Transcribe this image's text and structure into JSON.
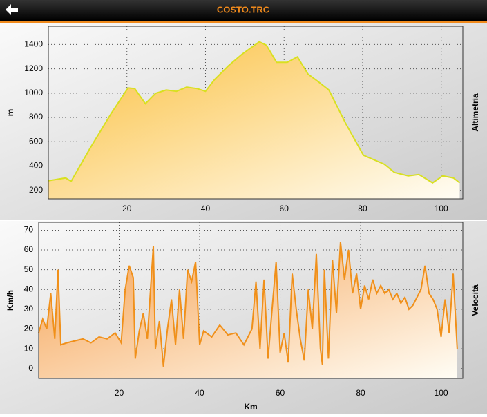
{
  "header": {
    "title": "COSTO.TRC"
  },
  "chart_data": [
    {
      "type": "area",
      "title": "Altimetria",
      "y_label": "m",
      "x": [
        0,
        4.4,
        5.8,
        10.6,
        15.9,
        20.3,
        22,
        24.7,
        27.3,
        30,
        32.6,
        35.2,
        37.9,
        40,
        42.3,
        45.8,
        49.3,
        53.7,
        55.5,
        58.1,
        60.8,
        63.4,
        66.1,
        68.7,
        71.4,
        75.8,
        80.2,
        85.5,
        88.1,
        91.6,
        94.3,
        97.8,
        100.4,
        103.1,
        104.7
      ],
      "values": [
        279,
        302,
        274,
        545,
        828,
        1043,
        1037,
        913,
        998,
        1026,
        1015,
        1049,
        1037,
        1015,
        1111,
        1224,
        1320,
        1422,
        1394,
        1253,
        1253,
        1298,
        1156,
        1094,
        1026,
        743,
        489,
        415,
        347,
        319,
        330,
        262,
        319,
        302,
        262
      ],
      "color": "#d8e020",
      "fill": "#fbbf3c",
      "xlim": [
        0,
        105.5
      ],
      "ylim": [
        130,
        1550
      ],
      "xticks": [
        20,
        40,
        60,
        80,
        100
      ],
      "yticks": [
        200,
        400,
        600,
        800,
        1000,
        1200,
        1400
      ],
      "grid": true
    },
    {
      "type": "area",
      "title": "Velocità",
      "y_label": "Km/h",
      "x_label": "Km",
      "x": [
        0,
        1,
        2,
        3,
        4,
        4.8,
        5.5,
        7,
        9,
        11,
        13,
        15,
        17,
        19,
        20.5,
        21.5,
        22.5,
        23.5,
        24,
        25,
        26,
        27,
        28.5,
        29,
        30,
        31,
        32,
        33,
        34,
        35,
        36,
        37,
        38,
        39,
        40,
        41,
        43,
        45,
        47,
        49,
        51,
        53,
        54,
        55,
        56,
        57,
        58,
        59,
        60,
        61,
        62,
        63,
        64,
        65,
        66,
        67,
        68,
        69,
        70,
        70.5,
        71,
        72,
        73,
        74,
        75,
        76,
        77,
        78,
        79,
        80,
        81,
        82,
        83,
        84,
        85,
        86,
        87,
        88,
        89,
        90,
        91,
        92,
        93,
        94,
        95,
        96,
        97,
        98,
        99,
        100,
        101,
        102,
        103,
        104
      ],
      "values": [
        18,
        25,
        20,
        38,
        15,
        50,
        12,
        13,
        14,
        15,
        13,
        16,
        15,
        18,
        13,
        40,
        52,
        46,
        5,
        19,
        28,
        15,
        62,
        10,
        24,
        1,
        20,
        35,
        12,
        40,
        15,
        50,
        44,
        54,
        12,
        19,
        16,
        22,
        17,
        18,
        12,
        20,
        44,
        10,
        45,
        5,
        30,
        54,
        8,
        18,
        3,
        48,
        30,
        15,
        4,
        40,
        20,
        58,
        10,
        2,
        50,
        5,
        55,
        28,
        64,
        45,
        60,
        38,
        48,
        30,
        42,
        35,
        45,
        38,
        42,
        38,
        40,
        35,
        38,
        33,
        36,
        30,
        32,
        36,
        40,
        52,
        38,
        35,
        30,
        16,
        35,
        18,
        48,
        10
      ],
      "color": "#f0901a",
      "fill": "#f5a050",
      "xlim": [
        0,
        105.4
      ],
      "ylim": [
        -5,
        74
      ],
      "xticks": [
        20,
        40,
        60,
        80,
        100
      ],
      "yticks": [
        0,
        10,
        20,
        30,
        40,
        50,
        60,
        70
      ],
      "grid": true
    }
  ]
}
